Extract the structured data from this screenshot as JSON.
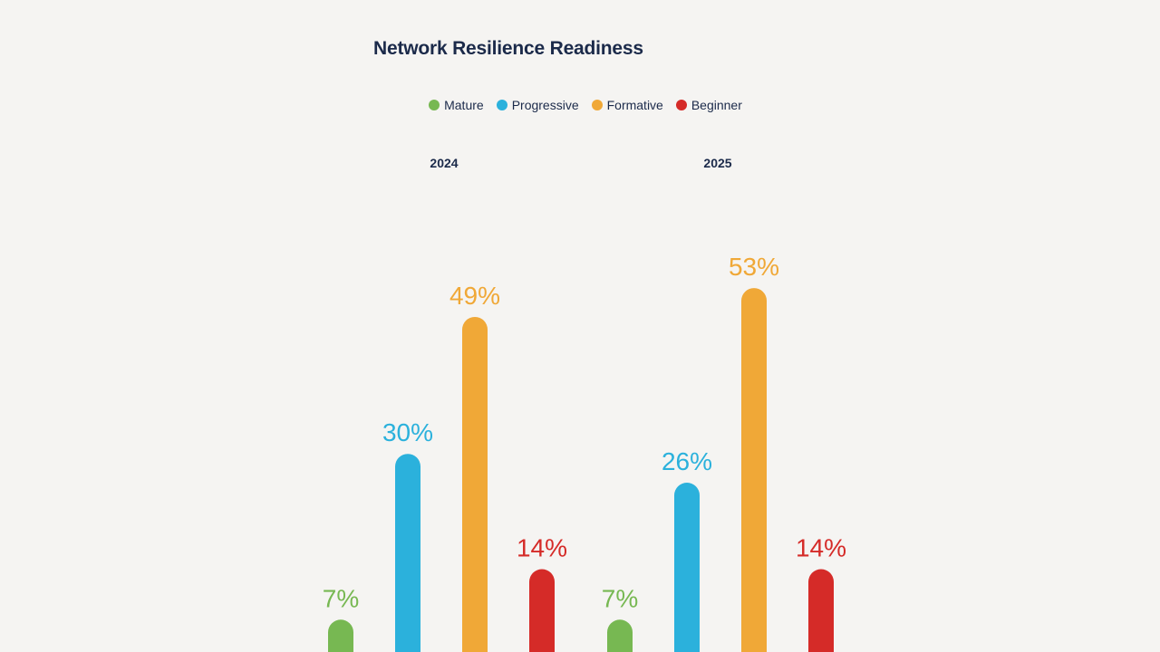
{
  "chart_data": {
    "type": "bar",
    "title": "Network Resilience Readiness",
    "categories": [
      "2024",
      "2025"
    ],
    "series": [
      {
        "name": "Mature",
        "color": "#77b852",
        "values": [
          7,
          7
        ]
      },
      {
        "name": "Progressive",
        "color": "#2bb1dc",
        "values": [
          30,
          26
        ]
      },
      {
        "name": "Formative",
        "color": "#f0a837",
        "values": [
          49,
          53
        ]
      },
      {
        "name": "Beginner",
        "color": "#d52b28",
        "values": [
          14,
          14
        ]
      }
    ],
    "value_suffix": "%",
    "legend_position": "top"
  }
}
